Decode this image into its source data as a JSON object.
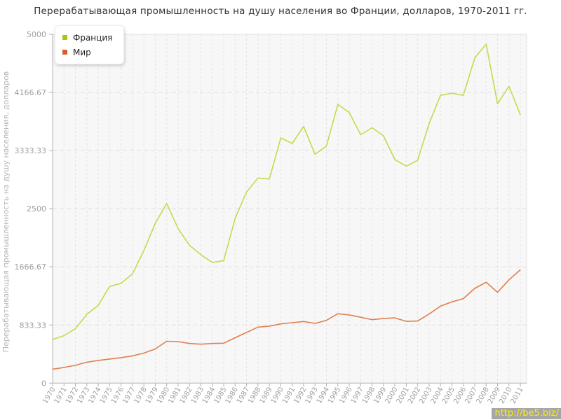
{
  "header": {
    "title": "Перерабатывающая промышленность на душу населения во Франции, долларов, 1970-2011 гг."
  },
  "y_axis_title": "Перерабатывающая промышленность на душу населения, долларов",
  "watermark": {
    "text": "http://be5.biz/"
  },
  "legend": {
    "items": [
      {
        "label": "Франция",
        "color": "#a8c715"
      },
      {
        "label": "Мир",
        "color": "#dc5b28"
      }
    ]
  },
  "chart_data": {
    "type": "line",
    "title": "Перерабатывающая промышленность на душу населения во Франции, долларов, 1970-2011 гг.",
    "ylabel": "Перерабатывающая промышленность на душу населения, долларов",
    "xlabel": "",
    "grid": true,
    "legend_position": "top-left",
    "ylim": [
      0,
      5000
    ],
    "yticks": [
      0,
      833.33,
      1666.67,
      2500,
      3333.33,
      4166.67,
      5000
    ],
    "ytick_labels": [
      "0",
      "833.33",
      "1666.67",
      "2500",
      "3333.33",
      "4166.67",
      "5000"
    ],
    "x": [
      1970,
      1971,
      1972,
      1973,
      1974,
      1975,
      1976,
      1977,
      1978,
      1979,
      1980,
      1981,
      1982,
      1983,
      1984,
      1985,
      1986,
      1987,
      1988,
      1989,
      1990,
      1991,
      1992,
      1993,
      1994,
      1995,
      1996,
      1997,
      1998,
      1999,
      2000,
      2001,
      2002,
      2003,
      2004,
      2005,
      2006,
      2007,
      2008,
      2009,
      2010,
      2011
    ],
    "series": [
      {
        "name": "Франция",
        "color": "#c6d94e",
        "values": [
          625,
          680,
          780,
          985,
          1115,
          1385,
          1430,
          1565,
          1900,
          2290,
          2575,
          2215,
          1975,
          1840,
          1730,
          1755,
          2360,
          2740,
          2940,
          2925,
          3515,
          3435,
          3680,
          3280,
          3400,
          3995,
          3880,
          3560,
          3660,
          3545,
          3205,
          3110,
          3195,
          3720,
          4125,
          4155,
          4125,
          4660,
          4860,
          4005,
          4255,
          3845
        ]
      },
      {
        "name": "Мир",
        "color": "#e07f4f",
        "values": [
          200,
          225,
          255,
          300,
          325,
          345,
          365,
          390,
          430,
          490,
          600,
          595,
          568,
          558,
          568,
          572,
          650,
          726,
          803,
          816,
          849,
          866,
          883,
          856,
          900,
          994,
          977,
          944,
          910,
          925,
          935,
          885,
          890,
          990,
          1104,
          1164,
          1211,
          1358,
          1446,
          1301,
          1480,
          1625
        ]
      }
    ]
  }
}
